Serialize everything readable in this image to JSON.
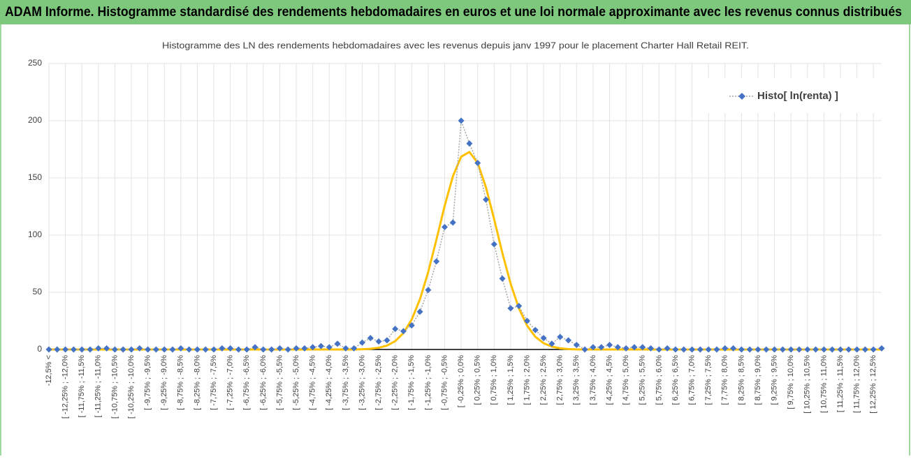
{
  "header": {
    "title": "ADAM Informe. Histogramme standardisé des rendements hebdomadaires en euros et une loi normale approximante avec les revenus connus distribués"
  },
  "chart_data": {
    "type": "line",
    "title": "Histogramme des LN des rendements hebdomadaires avec les revenus depuis janv 1997 pour le placement Charter Hall Retail REIT.",
    "categories": [
      "-12,5% <",
      null,
      "[ -12,25% ; -12,0%",
      null,
      "[ -11,75% ; -11,5%",
      null,
      "[ -11,25% ; -11,0%",
      null,
      "[ -10,75% ; -10,5%",
      null,
      "[ -10,25% ; -10,0%",
      null,
      "[ -9,75% ; -9,5%",
      null,
      "[ -9,25% ; -9,0%",
      null,
      "[ -8,75% ; -8,5%",
      null,
      "[ -8,25% ; -8,0%",
      null,
      "[ -7,75% ; -7,5%",
      null,
      "[ -7,25% ; -7,0%",
      null,
      "[ -6,75% ; -6,5%",
      null,
      "[ -6,25% ; -6,0%",
      null,
      "[ -5,75% ; -5,5%",
      null,
      "[ -5,25% ; -5,0%",
      null,
      "[ -4,75% ; -4,5%",
      null,
      "[ -4,25% ; -4,0%",
      null,
      "[ -3,75% ; -3,5%",
      null,
      "[ -3,25% ; -3,0%",
      null,
      "[ -2,75% ; -2,5%",
      null,
      "[ -2,25% ; -2,0%",
      null,
      "[ -1,75% ; -1,5%",
      null,
      "[ -1,25% ; -1,0%",
      null,
      "[ -0,75% ; -0,5%",
      null,
      "[ -0,25% ; 0,0%",
      null,
      "[ 0,25% ; 0,5%",
      null,
      "[ 0,75% ; 1,0%",
      null,
      "[ 1,25% ; 1,5%",
      null,
      "[ 1,75% ; 2,0%",
      null,
      "[ 2,25% ; 2,5%",
      null,
      "[ 2,75% ; 3,0%",
      null,
      "[ 3,25% ; 3,5%",
      null,
      "[ 3,75% ; 4,0%",
      null,
      "[ 4,25% ; 4,5%",
      null,
      "[ 4,75% ; 5,0%",
      null,
      "[ 5,25% ; 5,5%",
      null,
      "[ 5,75% ; 6,0%",
      null,
      "[ 6,25% ; 6,5%",
      null,
      "[ 6,75% ; 7,0%",
      null,
      "[ 7,25% ; 7,5%",
      null,
      "[ 7,75% ; 8,0%",
      null,
      "[ 8,25% ; 8,5%",
      null,
      "[ 8,75% ; 9,0%",
      null,
      "[ 9,25% ; 9,5%",
      null,
      "[ 9,75% ; 10,0%",
      null,
      "[ 10,25% ; 10,5%",
      null,
      "[ 10,75% ; 11,0%",
      null,
      "[ 11,25% ; 11,5%",
      null,
      "[ 11,75% ; 12,0%",
      null,
      "[ 12,25% ; 12,5%",
      null
    ],
    "series": [
      {
        "name": "Histo[ ln(renta) ]",
        "color": "#4472c4",
        "values": [
          0,
          0,
          0,
          0,
          0,
          0,
          1,
          1,
          0,
          0,
          0,
          1,
          0,
          0,
          0,
          0,
          1,
          0,
          0,
          0,
          0,
          1,
          1,
          0,
          0,
          2,
          0,
          0,
          1,
          0,
          1,
          1,
          2,
          3,
          2,
          5,
          1,
          1,
          6,
          10,
          7,
          8,
          18,
          16,
          21,
          33,
          52,
          77,
          107,
          111,
          200,
          180,
          163,
          131,
          92,
          62,
          36,
          38,
          25,
          17,
          10,
          5,
          11,
          8,
          4,
          0,
          2,
          2,
          4,
          2,
          1,
          2,
          2,
          1,
          0,
          1,
          0,
          0,
          0,
          0,
          0,
          0,
          1,
          1,
          0,
          0,
          0,
          0,
          0,
          0,
          0,
          0,
          0,
          0,
          0,
          0,
          0,
          0,
          0,
          0,
          0,
          1
        ]
      },
      {
        "color": "#ffc000",
        "values": [
          0,
          0,
          0,
          0,
          0,
          0,
          0,
          0,
          0,
          0,
          0,
          0,
          0,
          0,
          0,
          0,
          0,
          0,
          0,
          0,
          0,
          0,
          0,
          0,
          0,
          0,
          0,
          0,
          0,
          0,
          0,
          0,
          0,
          0,
          0,
          0,
          0,
          0,
          0.2,
          0.6,
          1.5,
          3.4,
          7.3,
          14.4,
          26.1,
          43.9,
          67.6,
          96,
          125.6,
          151.5,
          168.5,
          172.7,
          163.1,
          141.9,
          113.9,
          84.2,
          57.5,
          36,
          20.8,
          11.1,
          5.5,
          2.5,
          1,
          0.4,
          0.1,
          0,
          0,
          0,
          0,
          0,
          0,
          0,
          0,
          0,
          0,
          0,
          0,
          0,
          0,
          0,
          0,
          0,
          0,
          0,
          0,
          0,
          0,
          0,
          0,
          0,
          0,
          0,
          0,
          0,
          0,
          0,
          0,
          0,
          0,
          0,
          0,
          0
        ]
      }
    ],
    "ylim": [
      0,
      250
    ],
    "yticks": [
      0,
      50,
      100,
      150,
      200,
      250
    ],
    "grid": true,
    "legend": "upper right"
  }
}
